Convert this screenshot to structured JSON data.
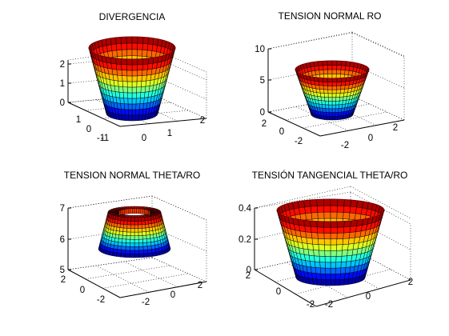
{
  "chart_data": [
    {
      "type": "surface",
      "title": "DIVERGENCIA",
      "zticks": [
        "0",
        "1",
        "2"
      ],
      "zlim": [
        0,
        2.3
      ],
      "xticks": [
        "-1",
        "0",
        "1",
        "2"
      ],
      "yticks": [
        "-1",
        "0",
        "1"
      ],
      "surface": {
        "shape": "truncated-cone",
        "inner_radius": 1,
        "outer_radius": 2,
        "z_bottom": 0,
        "z_top": 2.3,
        "colormap": "jet"
      },
      "grid": true
    },
    {
      "type": "surface",
      "title": "TENSION NORMAL RO",
      "zticks": [
        "0",
        "5",
        "10"
      ],
      "zlim": [
        0,
        10
      ],
      "xticks": [
        "-2",
        "0",
        "2"
      ],
      "yticks": [
        "-2",
        "0",
        "2"
      ],
      "surface": {
        "shape": "truncated-cone",
        "inner_radius": 1,
        "outer_radius": 2,
        "z_bottom": 0,
        "z_top": 7.5,
        "colormap": "jet"
      },
      "grid": true
    },
    {
      "type": "surface",
      "title": "TENSION NORMAL THETA/RO",
      "zticks": [
        "5",
        "6",
        "7"
      ],
      "zlim": [
        5,
        7
      ],
      "xticks": [
        "-2",
        "0",
        "2"
      ],
      "yticks": [
        "-2",
        "0",
        "2"
      ],
      "surface": {
        "shape": "inverted-truncated-cone",
        "inner_radius": 1,
        "outer_radius": 2,
        "z_bottom": 5.2,
        "z_top": 6.9,
        "colormap": "jet"
      },
      "grid": true
    },
    {
      "type": "surface",
      "title": "TENSIÓN TANGENCIAL THETA/RO",
      "zticks": [
        "0",
        "0.2",
        "0.4"
      ],
      "zlim": [
        0,
        0.4
      ],
      "xticks": [
        "-2",
        "0",
        "2"
      ],
      "yticks": [
        "-2",
        "0",
        "2"
      ],
      "surface": {
        "shape": "truncated-cone",
        "inner_radius": 1,
        "outer_radius": 2,
        "z_bottom": 0,
        "z_top": 0.4,
        "colormap": "jet"
      },
      "grid": true
    }
  ]
}
